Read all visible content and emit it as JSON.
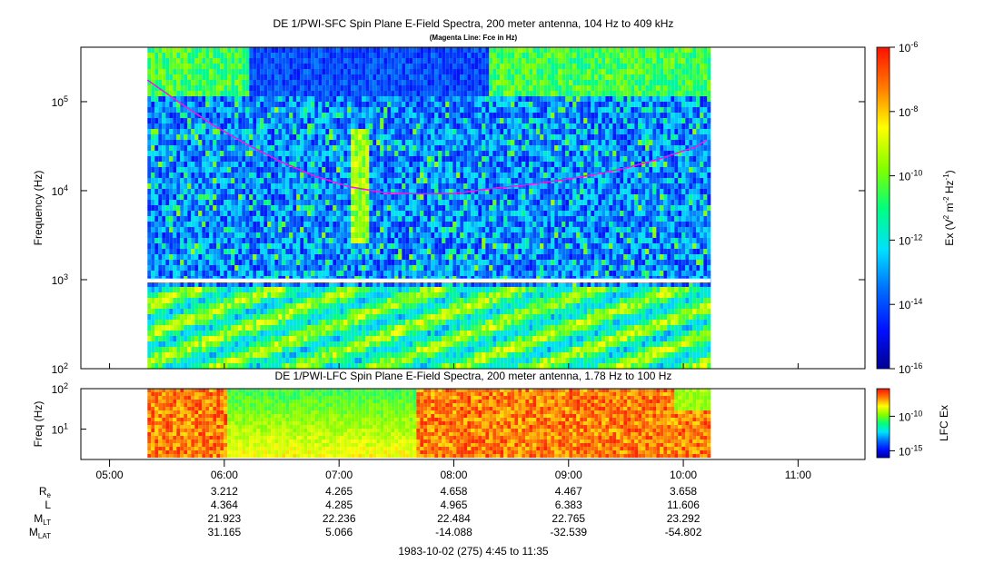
{
  "chart_data": [
    {
      "type": "heatmap",
      "title": "DE 1/PWI-SFC  Spin Plane E-Field Spectra, 200 meter antenna, 104 Hz to 409 kHz",
      "subtitle": "(Magenta Line: Fce in Hz)",
      "ylabel": "Frequency (Hz)",
      "y_scale": "log",
      "ylim": [
        100,
        409000
      ],
      "y_ticks": [
        {
          "value": 100,
          "base": "10",
          "exp": "2"
        },
        {
          "value": 1000,
          "base": "10",
          "exp": "3"
        },
        {
          "value": 10000,
          "base": "10",
          "exp": "4"
        },
        {
          "value": 100000,
          "base": "10",
          "exp": "5"
        }
      ],
      "data_gap_hz": [
        930,
        1030
      ],
      "colorbar": {
        "label": {
          "pre": "Ex (V",
          "sup1": "2",
          "mid": " m",
          "sup2": "-2",
          "mid2": " Hz",
          "sup3": "-1",
          "post": ")"
        },
        "range_log10": [
          -16,
          -6
        ],
        "ticks": [
          {
            "value": -6,
            "base": "10",
            "exp": "-6"
          },
          {
            "value": -8,
            "base": "10",
            "exp": "-8"
          },
          {
            "value": -10,
            "base": "10",
            "exp": "-10"
          },
          {
            "value": -12,
            "base": "10",
            "exp": "-12"
          },
          {
            "value": -14,
            "base": "10",
            "exp": "-14"
          },
          {
            "value": -16,
            "base": "10",
            "exp": "-16"
          }
        ]
      },
      "fce_line": {
        "color": "#e020e0",
        "time_hours": [
          5.33,
          5.6,
          5.9,
          6.2,
          6.5,
          6.8,
          7.1,
          7.4,
          7.7,
          8.0,
          8.3,
          8.6,
          8.9,
          9.2,
          9.5,
          9.8,
          10.1,
          10.2
        ],
        "freq_hz": [
          175000,
          100000,
          55000,
          33000,
          21000,
          14500,
          11000,
          9500,
          9200,
          9300,
          10500,
          11500,
          13000,
          15000,
          18000,
          23000,
          31000,
          37000
        ]
      }
    },
    {
      "type": "heatmap",
      "title": "DE 1/PWI-LFC  Spin Plane E-Field Spectra, 200 meter antenna, 1.78 Hz to 100 Hz",
      "ylabel": "Freq (Hz)",
      "y_scale": "log",
      "ylim": [
        1.78,
        100
      ],
      "y_ticks": [
        {
          "value": 10,
          "base": "10",
          "exp": "1"
        },
        {
          "value": 100,
          "base": "10",
          "exp": "2"
        }
      ],
      "colorbar": {
        "label": "LFC Ex",
        "range_log10": [
          -16,
          -6
        ],
        "ticks": [
          {
            "value": -10,
            "base": "10",
            "exp": "-10"
          },
          {
            "value": -15,
            "base": "10",
            "exp": "-15"
          }
        ]
      }
    }
  ],
  "time_axis": {
    "range_hours": [
      4.75,
      11.583
    ],
    "data_range_hours": [
      5.33,
      10.22
    ],
    "ticks": [
      {
        "hour": 5,
        "label": "05:00"
      },
      {
        "hour": 6,
        "label": "06:00"
      },
      {
        "hour": 7,
        "label": "07:00"
      },
      {
        "hour": 8,
        "label": "08:00"
      },
      {
        "hour": 9,
        "label": "09:00"
      },
      {
        "hour": 10,
        "label": "10:00"
      },
      {
        "hour": 11,
        "label": "11:00"
      }
    ],
    "footer": "1983-10-02 (275) 4:45 to 11:35"
  },
  "ephemeris": [
    {
      "name": "R",
      "sub": "e",
      "values": [
        "3.212",
        "4.265",
        "4.658",
        "4.467",
        "3.658"
      ]
    },
    {
      "name": "L",
      "sub": "",
      "values": [
        "4.364",
        "4.285",
        "4.965",
        "6.383",
        "11.606"
      ]
    },
    {
      "name": "M",
      "sub": "LT",
      "values": [
        "21.923",
        "22.236",
        "22.484",
        "22.765",
        "23.292"
      ]
    },
    {
      "name": "M",
      "sub": "LAT",
      "values": [
        "31.165",
        "5.066",
        "-14.088",
        "-32.539",
        "-54.802"
      ]
    }
  ],
  "ephemeris_hours": [
    6,
    7,
    8,
    9,
    10
  ]
}
